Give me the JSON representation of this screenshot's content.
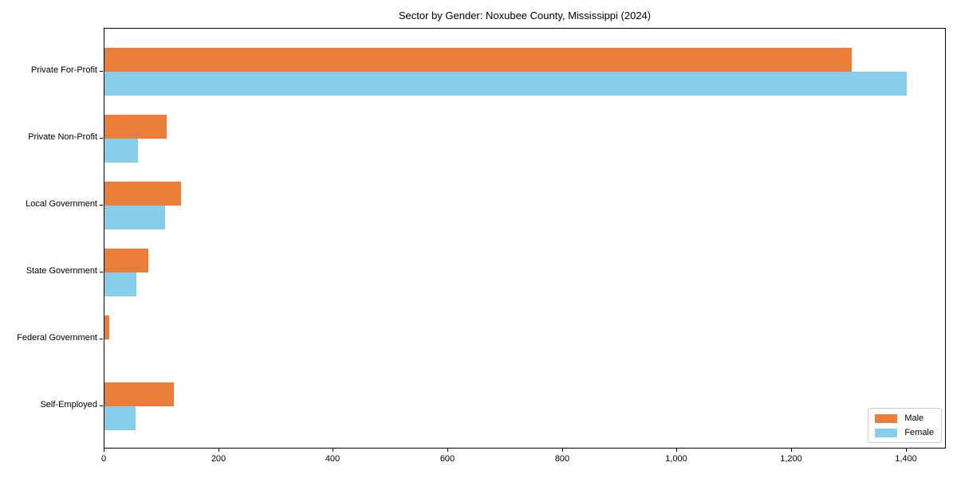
{
  "chart_data": {
    "type": "bar",
    "orientation": "horizontal",
    "title": "Sector by Gender: Noxubee County, Mississippi (2024)",
    "categories": [
      "Private For-Profit",
      "Private Non-Profit",
      "Local Government",
      "State Government",
      "Federal Government",
      "Self-Employed"
    ],
    "series": [
      {
        "name": "Male",
        "color": "#EB7D3B",
        "values": [
          1305,
          108,
          134,
          77,
          8,
          121
        ]
      },
      {
        "name": "Female",
        "color": "#87CEEB",
        "values": [
          1400,
          58,
          106,
          55,
          0,
          54
        ]
      }
    ],
    "xlabel": "",
    "ylabel": "",
    "xlim": [
      0,
      1470
    ],
    "x_ticks": [
      0,
      200,
      400,
      600,
      800,
      1000,
      1200,
      1400
    ],
    "x_tick_labels": [
      "0",
      "200",
      "400",
      "600",
      "800",
      "1,000",
      "1,200",
      "1,400"
    ],
    "grid": false,
    "legend_position": "lower right",
    "frame": "full box"
  }
}
